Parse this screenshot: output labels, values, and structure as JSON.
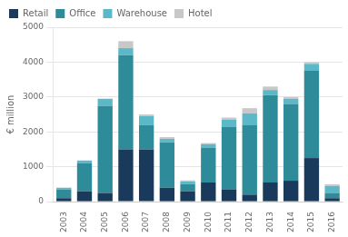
{
  "chart_data": {
    "type": "bar",
    "stacked": true,
    "categories": [
      "2003",
      "2004",
      "2005",
      "2006",
      "2007",
      "2008",
      "2009",
      "2010",
      "2011",
      "2012",
      "2013",
      "2014",
      "2015",
      "2016"
    ],
    "series": [
      {
        "name": "Retail",
        "color": "#1a3a5c",
        "values": [
          100,
          300,
          250,
          1500,
          1500,
          400,
          300,
          550,
          350,
          200,
          550,
          600,
          1250,
          100
        ]
      },
      {
        "name": "Office",
        "color": "#2e8b9a",
        "values": [
          250,
          800,
          2500,
          2700,
          700,
          1300,
          200,
          1000,
          1800,
          2000,
          2500,
          2200,
          2500,
          150
        ]
      },
      {
        "name": "Warehouse",
        "color": "#5bb8c8",
        "values": [
          50,
          80,
          200,
          200,
          250,
          100,
          80,
          100,
          200,
          330,
          150,
          150,
          200,
          200
        ]
      },
      {
        "name": "Hotel",
        "color": "#c8c8c8",
        "values": [
          0,
          0,
          0,
          200,
          50,
          50,
          30,
          30,
          60,
          150,
          100,
          50,
          50,
          50
        ]
      }
    ],
    "ylabel": "€ million",
    "ylim": [
      0,
      5000
    ],
    "yticks": [
      0,
      1000,
      2000,
      3000,
      4000,
      5000
    ],
    "grid": true,
    "legend": "top"
  }
}
